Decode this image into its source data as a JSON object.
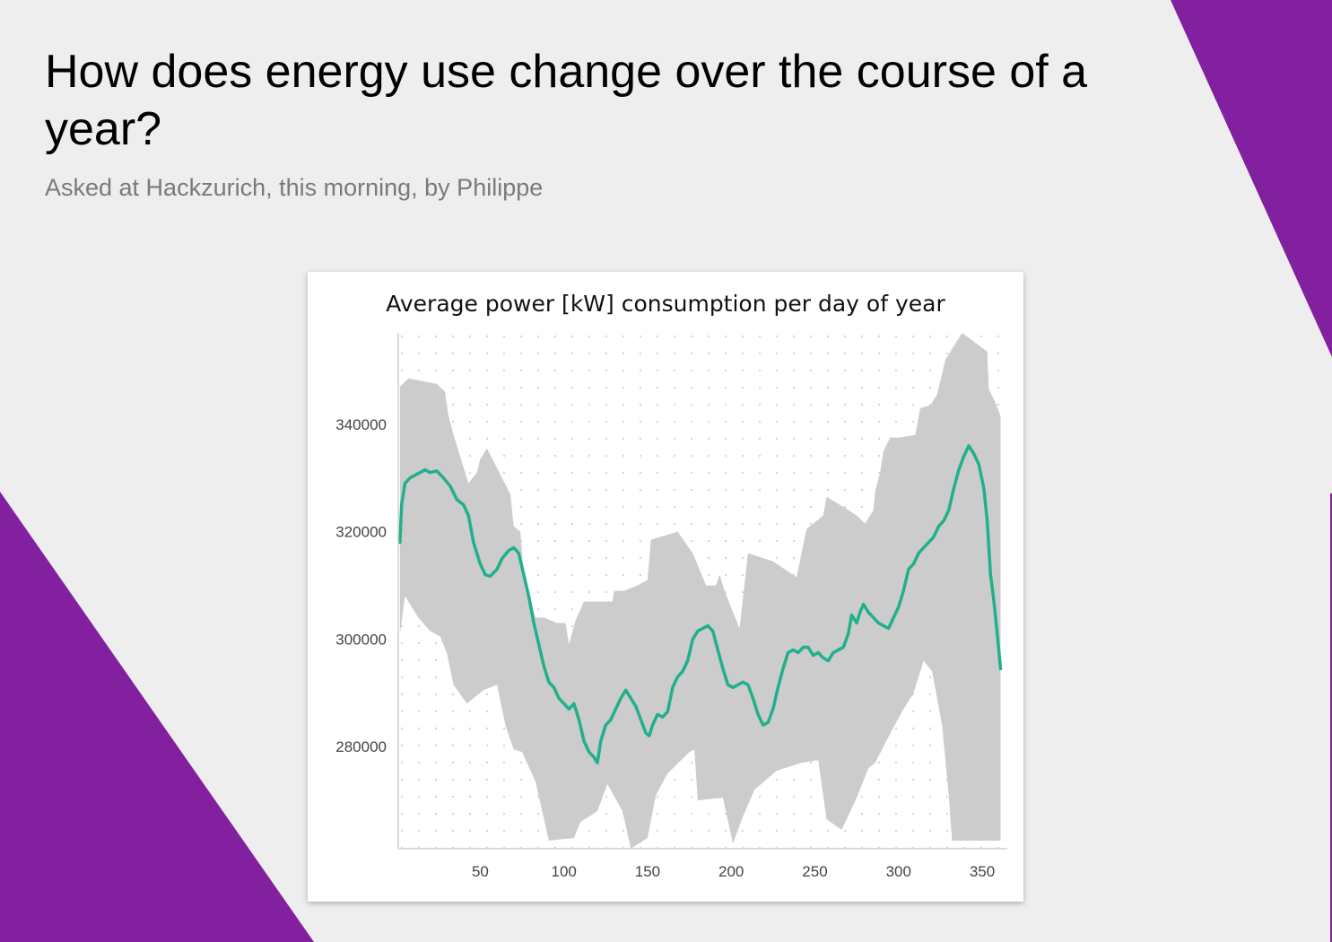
{
  "page": {
    "title": "How does energy use change over the course of a year?",
    "subtitle": "Asked at Hackzurich, this morning, by Philippe",
    "accent_color": "#8220a0",
    "background_color": "#eeeeee"
  },
  "chart_data": {
    "type": "line",
    "title": "Average power [kW] consumption per day of year",
    "xlabel": "",
    "ylabel": "",
    "xlim": [
      1,
      365
    ],
    "ylim": [
      261000,
      357000
    ],
    "x_ticks": [
      50,
      100,
      150,
      200,
      250,
      300,
      350
    ],
    "y_ticks": [
      280000,
      300000,
      320000,
      340000
    ],
    "x_tick_labels": [
      "50",
      "100",
      "150",
      "200",
      "250",
      "300",
      "350"
    ],
    "y_tick_labels": [
      "280000",
      "300000",
      "320000",
      "340000"
    ],
    "grid": "dotted",
    "legend": "none",
    "line_color": "#21b08c",
    "band_color": "#cccccc",
    "series": [
      {
        "values": [
          [
            2,
            318000
          ],
          [
            3,
            325000
          ],
          [
            5,
            329000
          ],
          [
            8,
            330000
          ],
          [
            11,
            330500
          ],
          [
            14,
            331000
          ],
          [
            17,
            331500
          ],
          [
            20,
            331000
          ],
          [
            24,
            331300
          ],
          [
            28,
            330000
          ],
          [
            32,
            328500
          ],
          [
            36,
            326000
          ],
          [
            40,
            325000
          ],
          [
            43,
            323000
          ],
          [
            46,
            318000
          ],
          [
            50,
            314000
          ],
          [
            53,
            312000
          ],
          [
            56,
            311700
          ],
          [
            60,
            313000
          ],
          [
            63,
            315000
          ],
          [
            67,
            316500
          ],
          [
            70,
            317000
          ],
          [
            73,
            316000
          ],
          [
            76,
            312000
          ],
          [
            79,
            308000
          ],
          [
            82,
            303000
          ],
          [
            85,
            299000
          ],
          [
            88,
            295000
          ],
          [
            91,
            292000
          ],
          [
            94,
            291000
          ],
          [
            97,
            289000
          ],
          [
            100,
            288000
          ],
          [
            103,
            287000
          ],
          [
            106,
            288000
          ],
          [
            109,
            285000
          ],
          [
            112,
            281000
          ],
          [
            115,
            279000
          ],
          [
            118,
            278000
          ],
          [
            120,
            277000
          ],
          [
            122,
            281000
          ],
          [
            125,
            284000
          ],
          [
            128,
            285000
          ],
          [
            131,
            287000
          ],
          [
            134,
            289000
          ],
          [
            137,
            290500
          ],
          [
            140,
            289000
          ],
          [
            143,
            287500
          ],
          [
            146,
            285000
          ],
          [
            149,
            282500
          ],
          [
            151,
            282000
          ],
          [
            153,
            284000
          ],
          [
            156,
            286000
          ],
          [
            159,
            285500
          ],
          [
            162,
            286500
          ],
          [
            165,
            291000
          ],
          [
            168,
            293000
          ],
          [
            171,
            294000
          ],
          [
            174,
            296000
          ],
          [
            177,
            300000
          ],
          [
            180,
            301500
          ],
          [
            183,
            302000
          ],
          [
            186,
            302500
          ],
          [
            189,
            301500
          ],
          [
            192,
            298000
          ],
          [
            195,
            294500
          ],
          [
            198,
            291500
          ],
          [
            201,
            291000
          ],
          [
            204,
            291500
          ],
          [
            207,
            292000
          ],
          [
            210,
            291500
          ],
          [
            213,
            289000
          ],
          [
            216,
            286000
          ],
          [
            219,
            284000
          ],
          [
            222,
            284500
          ],
          [
            225,
            287000
          ],
          [
            228,
            291000
          ],
          [
            231,
            294500
          ],
          [
            234,
            297500
          ],
          [
            237,
            298000
          ],
          [
            240,
            297500
          ],
          [
            243,
            298500
          ],
          [
            246,
            298500
          ],
          [
            249,
            297000
          ],
          [
            252,
            297500
          ],
          [
            255,
            296500
          ],
          [
            258,
            296000
          ],
          [
            261,
            297500
          ],
          [
            264,
            298000
          ],
          [
            267,
            298500
          ],
          [
            270,
            301000
          ],
          [
            272,
            304500
          ],
          [
            275,
            303000
          ],
          [
            277,
            305000
          ],
          [
            279,
            306500
          ],
          [
            282,
            305000
          ],
          [
            285,
            304000
          ],
          [
            288,
            303000
          ],
          [
            291,
            302500
          ],
          [
            294,
            302000
          ],
          [
            297,
            304000
          ],
          [
            300,
            306000
          ],
          [
            303,
            309000
          ],
          [
            306,
            313000
          ],
          [
            309,
            314000
          ],
          [
            312,
            316000
          ],
          [
            315,
            317000
          ],
          [
            318,
            318000
          ],
          [
            321,
            319000
          ],
          [
            324,
            321000
          ],
          [
            327,
            322000
          ],
          [
            330,
            324000
          ],
          [
            333,
            328000
          ],
          [
            336,
            331500
          ],
          [
            339,
            334000
          ],
          [
            342,
            336000
          ],
          [
            345,
            334500
          ],
          [
            348,
            332500
          ],
          [
            351,
            328000
          ],
          [
            353,
            322000
          ],
          [
            355,
            312000
          ],
          [
            357,
            307000
          ],
          [
            359,
            301000
          ],
          [
            361,
            294500
          ]
        ]
      }
    ],
    "band_upper": [
      [
        2,
        347000
      ],
      [
        7,
        348500
      ],
      [
        24,
        347500
      ],
      [
        29,
        346000
      ],
      [
        31,
        341500
      ],
      [
        34,
        338000
      ],
      [
        38,
        334000
      ],
      [
        43,
        329000
      ],
      [
        48,
        331000
      ],
      [
        50,
        333500
      ],
      [
        54,
        335500
      ],
      [
        63,
        330000
      ],
      [
        68,
        327000
      ],
      [
        70,
        321000
      ],
      [
        74,
        320000
      ],
      [
        76,
        311500
      ],
      [
        83,
        304000
      ],
      [
        88,
        304000
      ],
      [
        96,
        303000
      ],
      [
        101,
        303000
      ],
      [
        103,
        299000
      ],
      [
        107,
        303500
      ],
      [
        112,
        307000
      ],
      [
        124,
        307000
      ],
      [
        129,
        307000
      ],
      [
        130,
        309000
      ],
      [
        136,
        309000
      ],
      [
        144,
        310000
      ],
      [
        150,
        311000
      ],
      [
        152,
        318500
      ],
      [
        168,
        320000
      ],
      [
        177,
        316000
      ],
      [
        185,
        310000
      ],
      [
        191,
        310000
      ],
      [
        193,
        312000
      ],
      [
        196,
        309000
      ],
      [
        205,
        302000
      ],
      [
        210,
        316000
      ],
      [
        225,
        314500
      ],
      [
        239,
        311500
      ],
      [
        245,
        320500
      ],
      [
        255,
        323000
      ],
      [
        257,
        326500
      ],
      [
        265,
        325000
      ],
      [
        275,
        323000
      ],
      [
        280,
        321500
      ],
      [
        285,
        324000
      ],
      [
        286,
        327500
      ],
      [
        289,
        331000
      ],
      [
        291,
        335000
      ],
      [
        295,
        337500
      ],
      [
        300,
        337500
      ],
      [
        310,
        338000
      ],
      [
        313,
        343000
      ],
      [
        319,
        343500
      ],
      [
        323,
        345500
      ],
      [
        328,
        352000
      ],
      [
        338,
        357000
      ],
      [
        353,
        353500
      ],
      [
        354,
        346500
      ],
      [
        358,
        344000
      ],
      [
        361,
        341500
      ]
    ],
    "band_lower": [
      [
        2,
        301000
      ],
      [
        5,
        308000
      ],
      [
        13,
        304000
      ],
      [
        20,
        301500
      ],
      [
        26,
        300500
      ],
      [
        30,
        297500
      ],
      [
        34,
        291500
      ],
      [
        42,
        288000
      ],
      [
        52,
        290500
      ],
      [
        60,
        291500
      ],
      [
        65,
        284000
      ],
      [
        70,
        279500
      ],
      [
        75,
        279000
      ],
      [
        83,
        273500
      ],
      [
        91,
        262500
      ],
      [
        106,
        263000
      ],
      [
        110,
        266000
      ],
      [
        120,
        268000
      ],
      [
        126,
        273000
      ],
      [
        135,
        268000
      ],
      [
        140,
        261000
      ],
      [
        150,
        263000
      ],
      [
        155,
        271000
      ],
      [
        162,
        275000
      ],
      [
        175,
        279000
      ],
      [
        178,
        279500
      ],
      [
        180,
        270000
      ],
      [
        195,
        270500
      ],
      [
        201,
        262000
      ],
      [
        207,
        267000
      ],
      [
        214,
        272000
      ],
      [
        227,
        275500
      ],
      [
        242,
        277000
      ],
      [
        252,
        277500
      ],
      [
        257,
        266500
      ],
      [
        266,
        264500
      ],
      [
        275,
        270500
      ],
      [
        282,
        276000
      ],
      [
        286,
        277000
      ],
      [
        296,
        283000
      ],
      [
        303,
        287000
      ],
      [
        309,
        290000
      ],
      [
        315,
        296000
      ],
      [
        320,
        294000
      ],
      [
        326,
        284000
      ],
      [
        330,
        271000
      ],
      [
        332,
        262500
      ],
      [
        336,
        262500
      ]
    ]
  }
}
